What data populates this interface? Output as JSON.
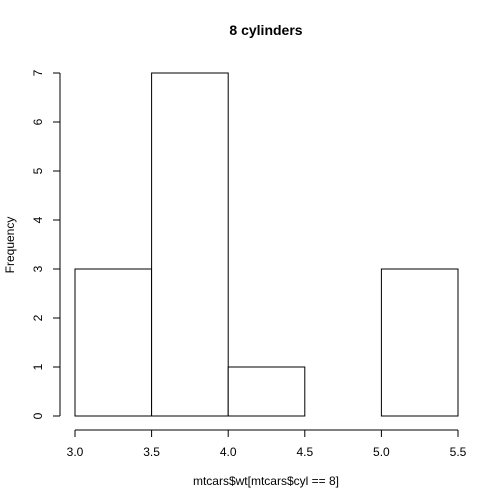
{
  "chart_data": {
    "type": "histogram",
    "title": "8 cylinders",
    "x_label": "mtcars$wt[mtcars$cyl == 8]",
    "y_label": "Frequency",
    "bins": [
      3.0,
      3.5,
      4.0,
      4.5,
      5.0,
      5.5
    ],
    "counts": [
      3,
      7,
      1,
      0,
      3
    ],
    "color": "#ffffff",
    "edge_color": "#000000",
    "xlim": [
      3.0,
      5.5
    ],
    "xticks": [
      {
        "value": 3,
        "label": "3.0"
      },
      3.5,
      {
        "value": 4,
        "label": "4.0"
      },
      4.5,
      {
        "value": 5,
        "label": "5.0"
      },
      5.5
    ],
    "ylim": [
      0,
      7
    ],
    "yticks": [
      0,
      1,
      2,
      3,
      4,
      5,
      6,
      7
    ]
  }
}
